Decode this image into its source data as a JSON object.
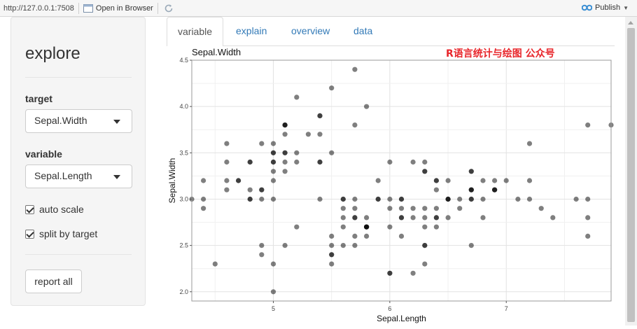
{
  "topbar": {
    "url": "http://127.0.0.1:7508",
    "open_label": "Open in Browser",
    "publish_label": "Publish"
  },
  "sidebar": {
    "title": "explore",
    "target_label": "target",
    "target_value": "Sepal.Width",
    "variable_label": "variable",
    "variable_value": "Sepal.Length",
    "auto_scale_label": "auto scale",
    "auto_scale_checked": true,
    "split_label": "split by target",
    "split_checked": true,
    "report_button": "report all"
  },
  "tabs": [
    {
      "label": "variable",
      "active": true
    },
    {
      "label": "explain",
      "active": false
    },
    {
      "label": "overview",
      "active": false
    },
    {
      "label": "data",
      "active": false
    }
  ],
  "watermark": "R语言统计与绘图 公众号",
  "accent_color": "#e8262b",
  "link_color": "#337ab7",
  "chart_data": {
    "type": "scatter",
    "title": "Sepal.Width",
    "xlabel": "Sepal.Length",
    "ylabel": "Sepal.Width",
    "xlim": [
      4.3,
      7.9
    ],
    "ylim": [
      1.9,
      4.5
    ],
    "x_ticks": [
      5,
      6,
      7
    ],
    "y_ticks": [
      2.0,
      2.5,
      3.0,
      3.5,
      4.0,
      4.5
    ],
    "grid": true,
    "point_color": "#000000",
    "point_alpha": 0.5,
    "x": [
      5.1,
      4.9,
      4.7,
      4.6,
      5.0,
      5.4,
      4.6,
      5.0,
      4.4,
      4.9,
      5.4,
      4.8,
      4.8,
      4.3,
      5.8,
      5.7,
      5.4,
      5.1,
      5.7,
      5.1,
      5.4,
      5.1,
      4.6,
      5.1,
      4.8,
      5.0,
      5.0,
      5.2,
      5.2,
      4.7,
      4.8,
      5.4,
      5.2,
      5.5,
      4.9,
      5.0,
      5.5,
      4.9,
      4.4,
      5.1,
      5.0,
      4.5,
      4.4,
      5.0,
      5.1,
      4.8,
      5.1,
      4.6,
      5.3,
      5.0,
      7.0,
      6.4,
      6.9,
      5.5,
      6.5,
      5.7,
      6.3,
      4.9,
      6.6,
      5.2,
      5.0,
      5.9,
      6.0,
      6.1,
      5.6,
      6.7,
      5.6,
      5.8,
      6.2,
      5.6,
      5.9,
      6.1,
      6.3,
      6.1,
      6.4,
      6.6,
      6.8,
      6.7,
      6.0,
      5.7,
      5.5,
      5.5,
      5.8,
      6.0,
      5.4,
      6.0,
      6.7,
      6.3,
      5.6,
      5.5,
      5.5,
      6.1,
      5.8,
      5.0,
      5.6,
      5.7,
      5.7,
      6.2,
      5.1,
      5.7,
      6.3,
      5.8,
      7.1,
      6.3,
      6.5,
      7.6,
      4.9,
      7.3,
      6.7,
      7.2,
      6.5,
      6.4,
      6.8,
      5.7,
      5.8,
      6.4,
      6.5,
      7.7,
      7.7,
      6.0,
      6.9,
      5.6,
      7.7,
      6.3,
      6.7,
      7.2,
      6.2,
      6.1,
      6.4,
      7.2,
      7.4,
      7.9,
      6.4,
      6.3,
      6.1,
      7.7,
      6.3,
      6.4,
      6.0,
      6.9,
      6.7,
      6.9,
      5.8,
      6.8,
      6.7,
      6.7,
      6.3,
      6.5,
      6.2,
      5.9
    ],
    "y": [
      3.5,
      3.0,
      3.2,
      3.1,
      3.6,
      3.9,
      3.4,
      3.4,
      2.9,
      3.1,
      3.7,
      3.4,
      3.0,
      3.0,
      4.0,
      4.4,
      3.9,
      3.5,
      3.8,
      3.8,
      3.4,
      3.7,
      3.6,
      3.3,
      3.4,
      3.0,
      3.4,
      3.5,
      3.4,
      3.2,
      3.1,
      3.4,
      4.1,
      4.2,
      3.1,
      3.2,
      3.5,
      3.6,
      3.0,
      3.4,
      3.5,
      2.3,
      3.2,
      3.5,
      3.8,
      3.0,
      3.8,
      3.2,
      3.7,
      3.3,
      3.2,
      3.2,
      3.1,
      2.3,
      2.8,
      2.8,
      3.3,
      2.4,
      2.9,
      2.7,
      2.0,
      3.0,
      2.2,
      2.9,
      2.9,
      3.1,
      3.0,
      2.7,
      2.2,
      2.5,
      3.2,
      2.8,
      2.5,
      2.8,
      2.9,
      3.0,
      2.8,
      3.0,
      2.9,
      2.6,
      2.4,
      2.4,
      2.7,
      2.7,
      3.0,
      3.4,
      3.1,
      2.3,
      3.0,
      2.5,
      2.6,
      3.0,
      2.6,
      2.3,
      2.7,
      3.0,
      2.9,
      2.9,
      2.5,
      2.8,
      3.3,
      2.7,
      3.0,
      2.9,
      3.0,
      3.0,
      2.5,
      2.9,
      2.5,
      3.6,
      3.2,
      2.7,
      3.0,
      2.5,
      2.8,
      3.2,
      3.0,
      3.8,
      2.6,
      2.2,
      3.2,
      2.8,
      2.8,
      2.7,
      3.3,
      3.2,
      2.8,
      3.0,
      2.8,
      3.0,
      2.8,
      3.8,
      2.8,
      2.8,
      2.6,
      3.0,
      3.4,
      3.1,
      3.0,
      3.1,
      3.1,
      3.1,
      2.7,
      3.2,
      3.3,
      3.0,
      2.5,
      3.0,
      3.4,
      3.0
    ]
  }
}
